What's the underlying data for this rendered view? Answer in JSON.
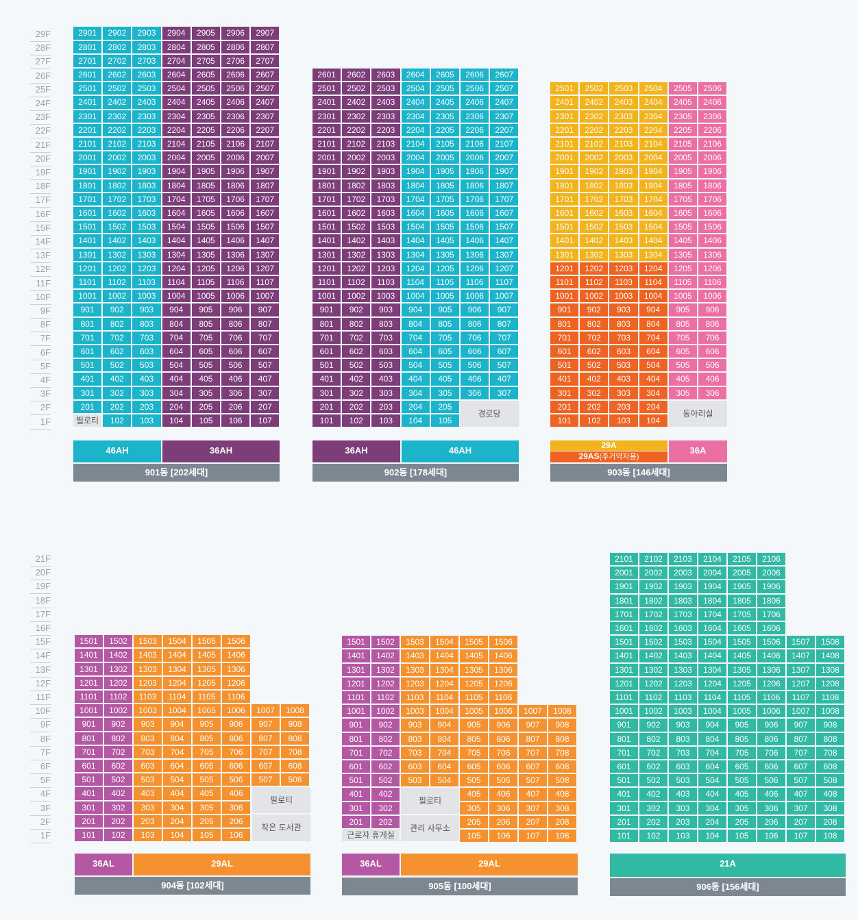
{
  "colors": {
    "teal": "#1cb4ca",
    "purple": "#7c3d79",
    "yellow": "#f2b31c",
    "pink": "#ec6fa4",
    "red": "#ee6322",
    "magenta": "#b458a4",
    "orange": "#f5922f",
    "green": "#31b9a4",
    "gray": "#e2e4e6",
    "label_bg": "#7d8792"
  },
  "top_floor_labels": [
    "29F",
    "28F",
    "27F",
    "26F",
    "25F",
    "24F",
    "23F",
    "22F",
    "21F",
    "20F",
    "19F",
    "18F",
    "17F",
    "16F",
    "15F",
    "14F",
    "13F",
    "12F",
    "11F",
    "10F",
    "9F",
    "8F",
    "7F",
    "6F",
    "5F",
    "4F",
    "3F",
    "2F",
    "1F"
  ],
  "bottom_floor_labels": [
    "21F",
    "20F",
    "19F",
    "18F",
    "17F",
    "16F",
    "15F",
    "14F",
    "13F",
    "12F",
    "11F",
    "10F",
    "9F",
    "8F",
    "7F",
    "6F",
    "5F",
    "4F",
    "3F",
    "2F",
    "1F"
  ],
  "buildings": [
    {
      "id": "901",
      "label": "901동 [202세대]",
      "special": [
        {
          "floor": 1,
          "units": [
            1
          ],
          "text": "필로티"
        }
      ],
      "types": [
        {
          "text": "46AH",
          "color": "teal"
        },
        {
          "text": "36AH",
          "color": "purple"
        }
      ]
    },
    {
      "id": "902",
      "label": "902동 [178세대]",
      "special": [
        {
          "floor": 1,
          "units": [
            6,
            7
          ],
          "floors_span": 2,
          "text": "경로당"
        }
      ],
      "types": [
        {
          "text": "36AH",
          "color": "purple"
        },
        {
          "text": "46AH",
          "color": "teal"
        }
      ]
    },
    {
      "id": "903",
      "label": "903동 [146세대]",
      "special": [
        {
          "text": "동아리실"
        }
      ],
      "types": [
        {
          "text": "29A",
          "color": "yellow"
        },
        {
          "text": "29AS",
          "note": "(주거약자용)",
          "color": "red"
        },
        {
          "text": "36A",
          "color": "pink"
        }
      ]
    },
    {
      "id": "904",
      "label": "904동 [102세대]",
      "special": [
        {
          "text": "필로티"
        },
        {
          "text": "작은 도서관"
        }
      ],
      "types": [
        {
          "text": "36AL",
          "color": "magenta"
        },
        {
          "text": "29AL",
          "color": "orange"
        }
      ]
    },
    {
      "id": "905",
      "label": "905동 [100세대]",
      "special": [
        {
          "text": "필로티"
        },
        {
          "text": "관리 사무소"
        },
        {
          "text": "근로자 휴게실"
        }
      ],
      "types": [
        {
          "text": "36AL",
          "color": "magenta"
        },
        {
          "text": "29AL",
          "color": "orange"
        }
      ]
    },
    {
      "id": "906",
      "label": "906동 [156세대]",
      "special": [],
      "types": [
        {
          "text": "21A",
          "color": "green"
        }
      ]
    }
  ]
}
